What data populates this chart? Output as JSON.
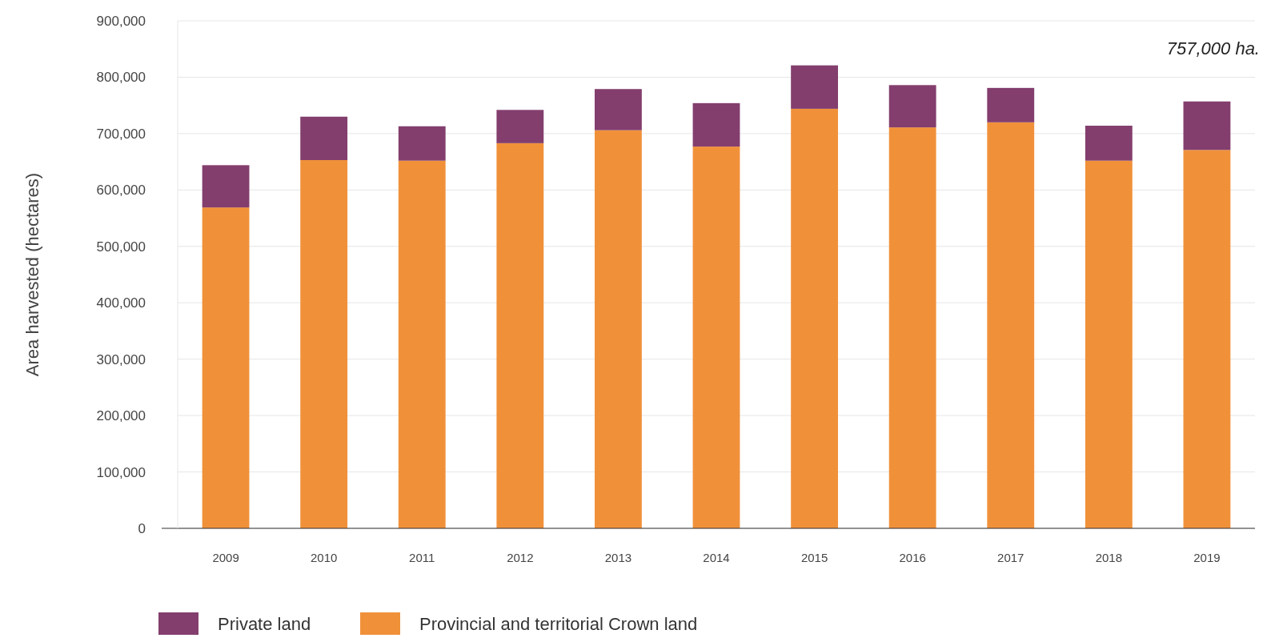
{
  "chart_data": {
    "type": "bar",
    "stacked": true,
    "ylabel": "Area harvested (hectares)",
    "categories": [
      "2009",
      "2010",
      "2011",
      "2012",
      "2013",
      "2014",
      "2015",
      "2016",
      "2017",
      "2018",
      "2019"
    ],
    "series": [
      {
        "name": "Provincial and territorial Crown land",
        "color": "#f0913a",
        "values": [
          569000,
          653000,
          652000,
          683000,
          706000,
          677000,
          744000,
          711000,
          720000,
          652000,
          671000
        ]
      },
      {
        "name": "Private land",
        "color": "#833e6e",
        "values": [
          75000,
          77000,
          61000,
          59000,
          73000,
          77000,
          77000,
          75000,
          61000,
          62000,
          86000
        ]
      }
    ],
    "ylim": [
      0,
      900000
    ],
    "yticks": [
      {
        "value": 0,
        "label": "0"
      },
      {
        "value": 100000,
        "label": "100,000"
      },
      {
        "value": 200000,
        "label": "200,000"
      },
      {
        "value": 300000,
        "label": "300,000"
      },
      {
        "value": 400000,
        "label": "400,000"
      },
      {
        "value": 500000,
        "label": "500,000"
      },
      {
        "value": 600000,
        "label": "600,000"
      },
      {
        "value": 700000,
        "label": "700,000"
      },
      {
        "value": 800000,
        "label": "800,000"
      },
      {
        "value": 900000,
        "label": "900,000"
      }
    ],
    "grid": "y",
    "legend": "bottom left",
    "annotations": [
      "757,000 ha."
    ]
  }
}
